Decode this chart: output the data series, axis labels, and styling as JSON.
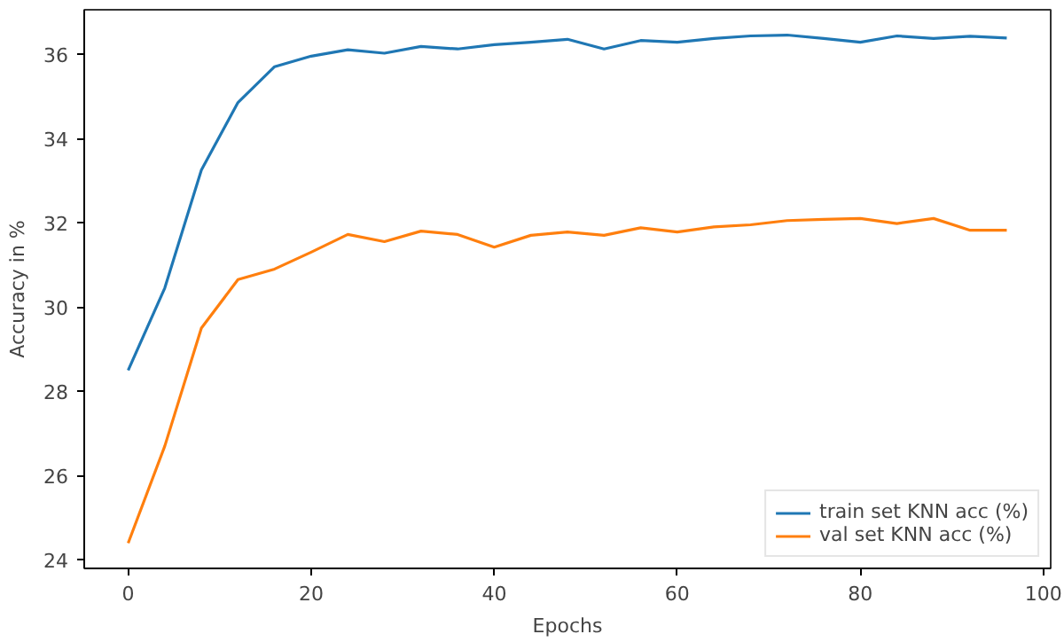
{
  "chart_data": {
    "type": "line",
    "xlabel": "Epochs",
    "ylabel": "Accuracy in %",
    "x": [
      0,
      4,
      8,
      12,
      16,
      20,
      24,
      28,
      32,
      36,
      40,
      44,
      48,
      52,
      56,
      60,
      64,
      68,
      72,
      76,
      80,
      84,
      88,
      92,
      96
    ],
    "series": [
      {
        "name": "train set KNN acc (%)",
        "color": "#1f77b4",
        "values": [
          28.5,
          30.45,
          33.25,
          34.85,
          35.7,
          35.95,
          36.1,
          36.02,
          36.18,
          36.12,
          36.22,
          36.28,
          36.35,
          36.12,
          36.32,
          36.28,
          36.37,
          36.43,
          36.45,
          36.37,
          36.28,
          36.43,
          36.37,
          36.42,
          36.38
        ]
      },
      {
        "name": "val set KNN acc (%)",
        "color": "#ff7f0e",
        "values": [
          24.4,
          26.7,
          29.5,
          30.65,
          30.9,
          31.3,
          31.72,
          31.55,
          31.8,
          31.72,
          31.42,
          31.7,
          31.78,
          31.7,
          31.88,
          31.78,
          31.9,
          31.95,
          32.05,
          32.08,
          32.1,
          31.98,
          32.1,
          31.82,
          31.82
        ]
      }
    ],
    "xlim": [
      -4.8,
      100.8
    ],
    "ylim": [
      23.8,
      37.05
    ],
    "xticks": [
      0,
      20,
      40,
      60,
      80,
      100
    ],
    "yticks": [
      24,
      26,
      28,
      30,
      32,
      34,
      36
    ],
    "grid": false,
    "legend": "bottom right",
    "marker": "none",
    "line_style": "solid"
  }
}
